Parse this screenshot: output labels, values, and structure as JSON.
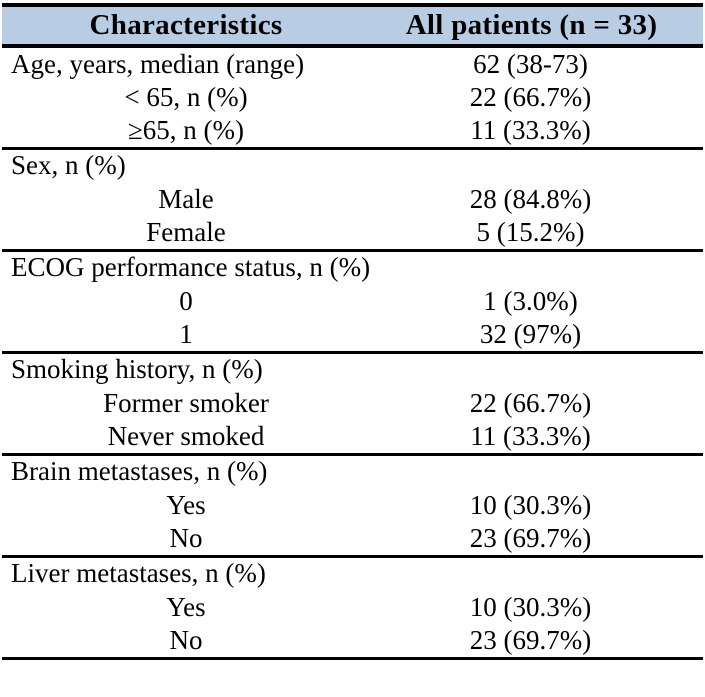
{
  "page_bg": "#ffffff",
  "table": {
    "header_bg": "#b8cce4",
    "border_color": "#000000",
    "header": {
      "characteristics": "Characteristics",
      "all_patients": "All patients (n = 33)"
    },
    "sections": [
      {
        "name": "age",
        "rows": [
          {
            "label": "Age, years, median (range)",
            "value": "62 (38-73)",
            "indent": false
          },
          {
            "label": "< 65, n (%)",
            "value": "22 (66.7%)",
            "indent": true
          },
          {
            "label": "≥65, n (%)",
            "value": "11 (33.3%)",
            "indent": true
          }
        ]
      },
      {
        "name": "sex",
        "rows": [
          {
            "label": "Sex, n (%)",
            "value": "",
            "indent": false
          },
          {
            "label": "Male",
            "value": "28 (84.8%)",
            "indent": true
          },
          {
            "label": "Female",
            "value": "5 (15.2%)",
            "indent": true
          }
        ]
      },
      {
        "name": "ecog",
        "rows": [
          {
            "label": "ECOG performance status, n (%)",
            "value": "",
            "indent": false
          },
          {
            "label": "0",
            "value": "1 (3.0%)",
            "indent": true
          },
          {
            "label": "1",
            "value": "32 (97%)",
            "indent": true
          }
        ]
      },
      {
        "name": "smoking",
        "rows": [
          {
            "label": "Smoking history, n (%)",
            "value": "",
            "indent": false
          },
          {
            "label": "Former smoker",
            "value": "22 (66.7%)",
            "indent": true
          },
          {
            "label": "Never smoked",
            "value": "11 (33.3%)",
            "indent": true
          }
        ]
      },
      {
        "name": "brain-metastases",
        "rows": [
          {
            "label": "Brain metastases, n (%)",
            "value": "",
            "indent": false
          },
          {
            "label": "Yes",
            "value": "10 (30.3%)",
            "indent": true
          },
          {
            "label": "No",
            "value": "23 (69.7%)",
            "indent": true
          }
        ]
      },
      {
        "name": "liver-metastases",
        "rows": [
          {
            "label": "Liver metastases, n (%)",
            "value": "",
            "indent": false
          },
          {
            "label": "Yes",
            "value": "10 (30.3%)",
            "indent": true
          },
          {
            "label": "No",
            "value": "23 (69.7%)",
            "indent": true
          }
        ]
      }
    ]
  }
}
